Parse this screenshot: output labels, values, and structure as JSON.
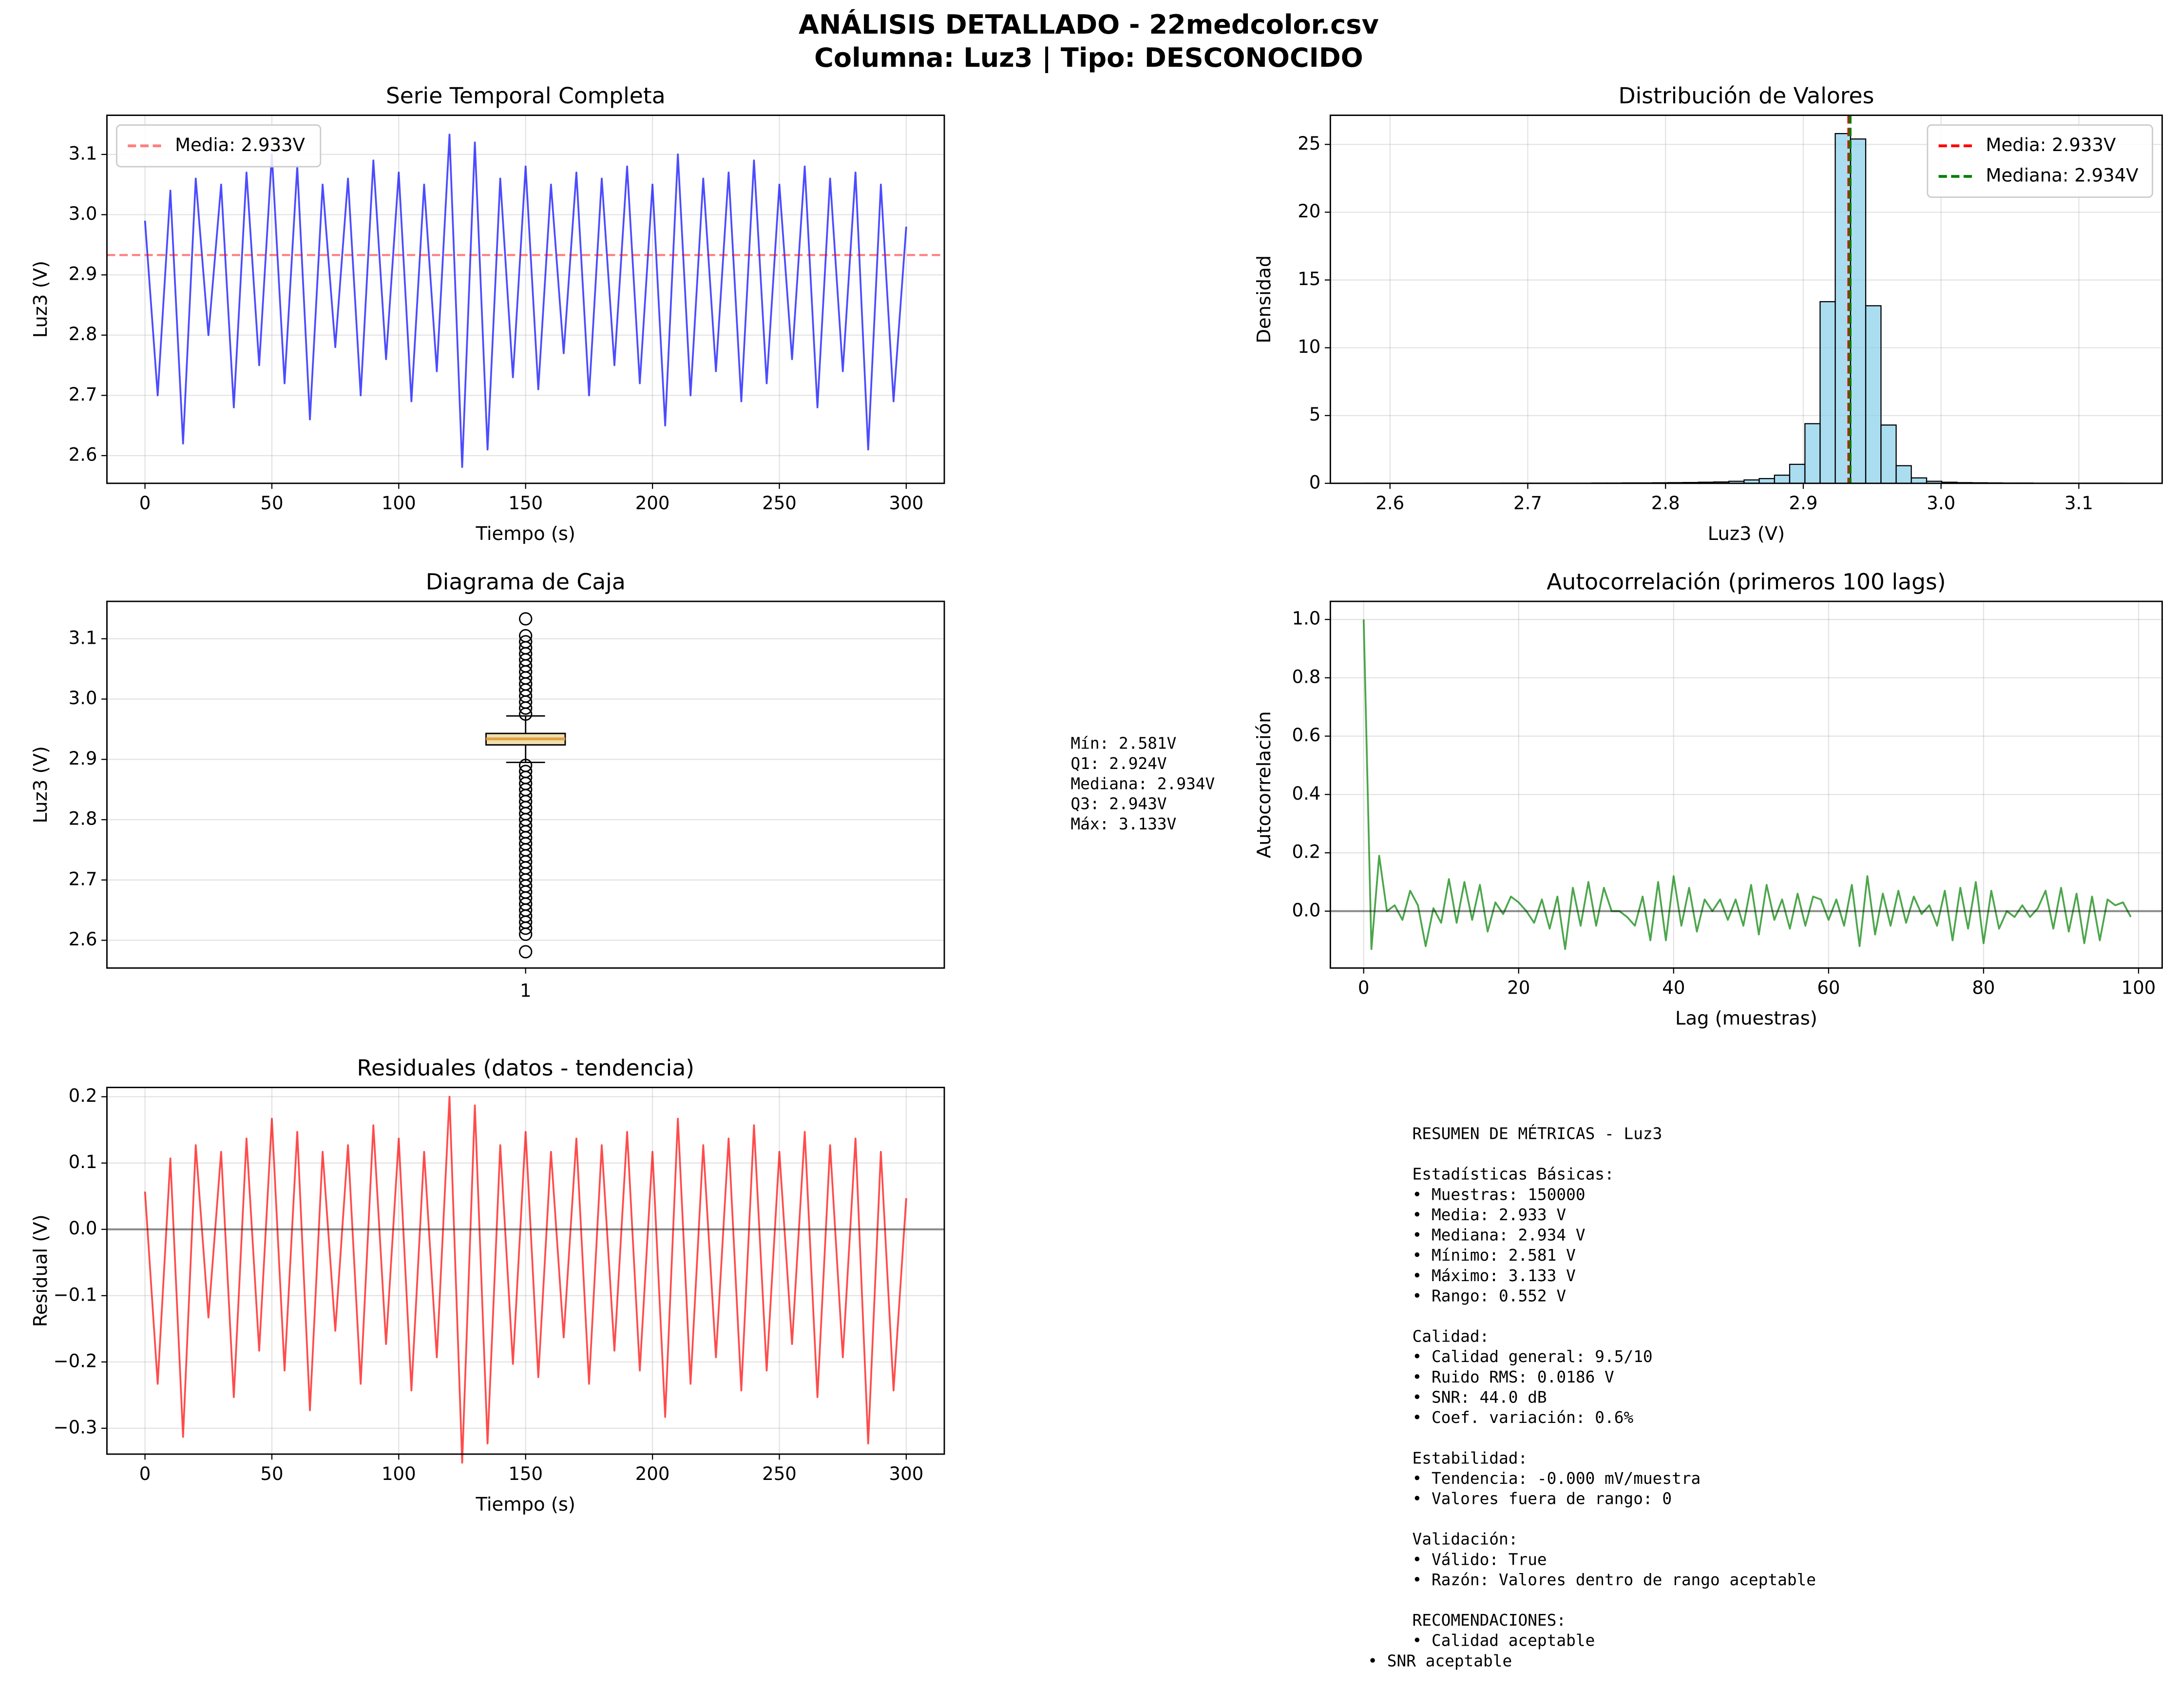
{
  "title": "ANÁLISIS DETALLADO - 22medcolor.csv",
  "subtitle": "Columna: Luz3 | Tipo: DESCONOCIDO",
  "chart_data": [
    {
      "type": "line",
      "title": "Serie Temporal Completa",
      "xlabel": "Tiempo (s)",
      "ylabel": "Luz3 (V)",
      "x": [
        0,
        5,
        10,
        15,
        20,
        25,
        30,
        35,
        40,
        45,
        50,
        55,
        60,
        65,
        70,
        75,
        80,
        85,
        90,
        95,
        100,
        105,
        110,
        115,
        120,
        125,
        130,
        135,
        140,
        145,
        150,
        155,
        160,
        165,
        170,
        175,
        180,
        185,
        190,
        195,
        200,
        205,
        210,
        215,
        220,
        225,
        230,
        235,
        240,
        245,
        250,
        255,
        260,
        265,
        270,
        275,
        280,
        285,
        290,
        295,
        300
      ],
      "values": [
        2.99,
        2.7,
        3.04,
        2.62,
        3.06,
        2.8,
        3.05,
        2.68,
        3.07,
        2.75,
        3.1,
        2.72,
        3.08,
        2.66,
        3.05,
        2.78,
        3.06,
        2.7,
        3.09,
        2.76,
        3.07,
        2.69,
        3.05,
        2.74,
        3.133,
        2.581,
        3.12,
        2.61,
        3.06,
        2.73,
        3.08,
        2.71,
        3.05,
        2.77,
        3.07,
        2.7,
        3.06,
        2.75,
        3.08,
        2.72,
        3.05,
        2.65,
        3.1,
        2.7,
        3.06,
        2.74,
        3.07,
        2.69,
        3.09,
        2.72,
        3.05,
        2.76,
        3.08,
        2.68,
        3.06,
        2.74,
        3.07,
        2.61,
        3.05,
        2.69,
        2.98
      ],
      "color": "#0000ff",
      "hlines": [
        {
          "value": 2.933,
          "name": "Media: 2.933V",
          "color": "#ff0000",
          "dashed": true,
          "opacity": 0.5
        }
      ],
      "legend": "upper left",
      "grid": true,
      "xlim": [
        -15,
        315
      ],
      "xticks": [
        0,
        50,
        100,
        150,
        200,
        250,
        300
      ],
      "ylim": [
        2.554,
        3.165
      ],
      "yticks": [
        2.6,
        2.7,
        2.8,
        2.9,
        {
          "value": 3,
          "label": "3.0"
        },
        3.1
      ]
    },
    {
      "type": "histogram",
      "title": "Distribución de Valores",
      "xlabel": "Luz3 (V)",
      "ylabel": "Densidad",
      "bins": [
        2.581,
        2.592,
        2.6031,
        2.6141,
        2.6252,
        2.6362,
        2.6472,
        2.6583,
        2.6693,
        2.6804,
        2.6914,
        2.7024,
        2.7135,
        2.7245,
        2.7356,
        2.7466,
        2.7576,
        2.7687,
        2.7797,
        2.7908,
        2.8018,
        2.8128,
        2.8239,
        2.8349,
        2.846,
        2.857,
        2.868,
        2.8791,
        2.8901,
        2.9012,
        2.9122,
        2.9232,
        2.9343,
        2.9453,
        2.9564,
        2.9674,
        2.9784,
        2.9895,
        3.0005,
        3.0116,
        3.0226,
        3.0336,
        3.0447,
        3.0557,
        3.0668,
        3.0778,
        3.0888,
        3.0999,
        3.1109,
        3.122,
        3.133
      ],
      "values": [
        0.01,
        0,
        0,
        0,
        0,
        0,
        0,
        0,
        0,
        0.01,
        0.01,
        0.01,
        0.01,
        0.01,
        0.01,
        0.02,
        0.02,
        0.03,
        0.03,
        0.04,
        0.05,
        0.06,
        0.08,
        0.1,
        0.15,
        0.25,
        0.35,
        0.6,
        1.4,
        4.4,
        13.4,
        25.8,
        25.4,
        13.1,
        4.3,
        1.3,
        0.4,
        0.15,
        0.08,
        0.05,
        0.04,
        0.03,
        0.02,
        0.02,
        0.01,
        0.01,
        0.01,
        0.01,
        0.01,
        0.01
      ],
      "color": "#87ceeb",
      "vlines": [
        {
          "value": 2.933,
          "name": "Media: 2.933V",
          "color": "#ff0000",
          "dashed": true,
          "opacity": 1
        },
        {
          "value": 2.934,
          "name": "Mediana: 2.934V",
          "color": "#008000",
          "dashed": true,
          "opacity": 1
        }
      ],
      "legend": "upper right",
      "grid": true,
      "xlim": [
        2.5567,
        3.1605
      ],
      "xticks": [
        2.6,
        2.7,
        2.8,
        2.9,
        {
          "value": 3,
          "label": "3.0"
        },
        3.1
      ],
      "ylim": [
        0,
        27.15
      ],
      "yticks": [
        0,
        5,
        10,
        15,
        20,
        25
      ]
    },
    {
      "type": "box",
      "title": "Diagrama de Caja",
      "ylabel": "Luz3 (V)",
      "categories": [
        "1"
      ],
      "whisker_low": 2.895,
      "q1": 2.924,
      "median": 2.934,
      "q3": 2.943,
      "whisker_high": 2.972,
      "outliers": [
        2.581,
        2.61,
        2.62,
        2.63,
        2.64,
        2.65,
        2.66,
        2.67,
        2.68,
        2.69,
        2.7,
        2.71,
        2.72,
        2.73,
        2.74,
        2.75,
        2.76,
        2.77,
        2.78,
        2.79,
        2.8,
        2.81,
        2.82,
        2.83,
        2.84,
        2.85,
        2.86,
        2.87,
        2.88,
        2.89,
        2.975,
        2.985,
        2.995,
        3.005,
        3.015,
        3.025,
        3.035,
        3.045,
        3.055,
        3.065,
        3.075,
        3.085,
        3.095,
        3.105,
        3.133
      ],
      "color": "#f0deb0",
      "median_color": "#e0a040",
      "grid": true,
      "ylim": [
        2.554,
        3.162
      ],
      "yticks": [
        2.6,
        2.7,
        2.8,
        2.9,
        {
          "value": 3,
          "label": "3.0"
        },
        3.1
      ],
      "stats_text": [
        "Mín: 2.581V",
        "Q1: 2.924V",
        "Mediana: 2.934V",
        "Q3: 2.943V",
        "Máx: 3.133V"
      ]
    },
    {
      "type": "line",
      "title": "Autocorrelación (primeros 100 lags)",
      "xlabel": "Lag (muestras)",
      "ylabel": "Autocorrelación",
      "x": [
        0,
        1,
        2,
        3,
        4,
        5,
        6,
        7,
        8,
        9,
        10,
        11,
        12,
        13,
        14,
        15,
        16,
        17,
        18,
        19,
        20,
        21,
        22,
        23,
        24,
        25,
        26,
        27,
        28,
        29,
        30,
        31,
        32,
        33,
        34,
        35,
        36,
        37,
        38,
        39,
        40,
        41,
        42,
        43,
        44,
        45,
        46,
        47,
        48,
        49,
        50,
        51,
        52,
        53,
        54,
        55,
        56,
        57,
        58,
        59,
        60,
        61,
        62,
        63,
        64,
        65,
        66,
        67,
        68,
        69,
        70,
        71,
        72,
        73,
        74,
        75,
        76,
        77,
        78,
        79,
        80,
        81,
        82,
        83,
        84,
        85,
        86,
        87,
        88,
        89,
        90,
        91,
        92,
        93,
        94,
        95,
        96,
        97,
        98,
        99
      ],
      "values": [
        1.0,
        -0.13,
        0.19,
        0.0,
        0.02,
        -0.03,
        0.07,
        0.02,
        -0.12,
        0.01,
        -0.04,
        0.11,
        -0.04,
        0.1,
        -0.03,
        0.09,
        -0.07,
        0.03,
        -0.01,
        0.05,
        0.03,
        0.0,
        -0.04,
        0.04,
        -0.06,
        0.05,
        -0.13,
        0.08,
        -0.05,
        0.1,
        -0.05,
        0.08,
        0.0,
        0.0,
        -0.02,
        -0.05,
        0.05,
        -0.1,
        0.1,
        -0.1,
        0.12,
        -0.05,
        0.08,
        -0.07,
        0.04,
        0.0,
        0.04,
        -0.03,
        0.04,
        -0.05,
        0.09,
        -0.08,
        0.09,
        -0.03,
        0.04,
        -0.06,
        0.06,
        -0.05,
        0.05,
        0.04,
        -0.03,
        0.04,
        -0.05,
        0.09,
        -0.12,
        0.12,
        -0.08,
        0.06,
        -0.05,
        0.07,
        -0.04,
        0.05,
        -0.01,
        0.02,
        -0.05,
        0.07,
        -0.1,
        0.08,
        -0.06,
        0.1,
        -0.11,
        0.07,
        -0.06,
        0.0,
        -0.02,
        0.02,
        -0.02,
        0.01,
        0.07,
        -0.06,
        0.08,
        -0.07,
        0.06,
        -0.11,
        0.05,
        -0.1,
        0.04,
        0.02,
        0.03,
        -0.02
      ],
      "color": "#008000",
      "hlines": [
        {
          "value": 0,
          "color": "#000000",
          "dashed": false,
          "opacity": 0.4
        }
      ],
      "grid": true,
      "xlim": [
        -4.3,
        103.05
      ],
      "xticks": [
        0,
        20,
        40,
        60,
        80,
        100
      ],
      "ylim": [
        -0.195,
        1.062
      ],
      "yticks": [
        {
          "value": 0,
          "label": "0.0"
        },
        0.2,
        0.4,
        0.6,
        0.8,
        {
          "value": 1,
          "label": "1.0"
        }
      ]
    },
    {
      "type": "line",
      "title": "Residuales (datos - tendencia)",
      "xlabel": "Tiempo (s)",
      "ylabel": "Residual (V)",
      "x": [
        0,
        5,
        10,
        15,
        20,
        25,
        30,
        35,
        40,
        45,
        50,
        55,
        60,
        65,
        70,
        75,
        80,
        85,
        90,
        95,
        100,
        105,
        110,
        115,
        120,
        125,
        130,
        135,
        140,
        145,
        150,
        155,
        160,
        165,
        170,
        175,
        180,
        185,
        190,
        195,
        200,
        205,
        210,
        215,
        220,
        225,
        230,
        235,
        240,
        245,
        250,
        255,
        260,
        265,
        270,
        275,
        280,
        285,
        290,
        295,
        300
      ],
      "values": [
        0.057,
        -0.233,
        0.107,
        -0.313,
        0.127,
        -0.133,
        0.117,
        -0.253,
        0.137,
        -0.183,
        0.167,
        -0.213,
        0.147,
        -0.273,
        0.117,
        -0.153,
        0.127,
        -0.233,
        0.157,
        -0.173,
        0.137,
        -0.243,
        0.117,
        -0.193,
        0.2,
        -0.352,
        0.187,
        -0.323,
        0.127,
        -0.203,
        0.147,
        -0.223,
        0.117,
        -0.163,
        0.137,
        -0.233,
        0.127,
        -0.183,
        0.147,
        -0.213,
        0.117,
        -0.283,
        0.167,
        -0.233,
        0.127,
        -0.193,
        0.137,
        -0.243,
        0.157,
        -0.213,
        0.117,
        -0.173,
        0.147,
        -0.253,
        0.127,
        -0.193,
        0.137,
        -0.323,
        0.117,
        -0.243,
        0.047
      ],
      "color": "#ff0000",
      "hlines": [
        {
          "value": 0,
          "color": "#000000",
          "dashed": false,
          "opacity": 0.4
        }
      ],
      "grid": true,
      "xlim": [
        -15,
        315
      ],
      "xticks": [
        0,
        50,
        100,
        150,
        200,
        250,
        300
      ],
      "ylim": [
        -0.339,
        0.214
      ],
      "yticks": [
        {
          "value": -0.3,
          "label": "−0.3"
        },
        {
          "value": -0.2,
          "label": "−0.2"
        },
        {
          "value": -0.1,
          "label": "−0.1"
        },
        {
          "value": 0,
          "label": "0.0"
        },
        0.1,
        0.2
      ]
    }
  ],
  "summary": [
    [
      "RESUMEN DE MÉTRICAS - Luz3"
    ],
    [
      "Estadísticas Básicas:",
      "• Muestras: 150000",
      "• Media: 2.933 V",
      "• Mediana: 2.934 V",
      "• Mínimo: 2.581 V",
      "• Máximo: 3.133 V",
      "• Rango: 0.552 V"
    ],
    [
      "Calidad:",
      "• Calidad general: 9.5/10",
      "• Ruido RMS: 0.0186 V",
      "• SNR: 44.0 dB",
      "• Coef. variación: 0.6%"
    ],
    [
      "Estabilidad:",
      "• Tendencia: -0.000 mV/muestra",
      "• Valores fuera de rango: 0"
    ],
    [
      "Validación:",
      "• Válido: True",
      "• Razón: Valores dentro de rango aceptable"
    ],
    [
      "RECOMENDACIONES:",
      "• Calidad aceptable",
      "• SNR aceptable"
    ]
  ]
}
